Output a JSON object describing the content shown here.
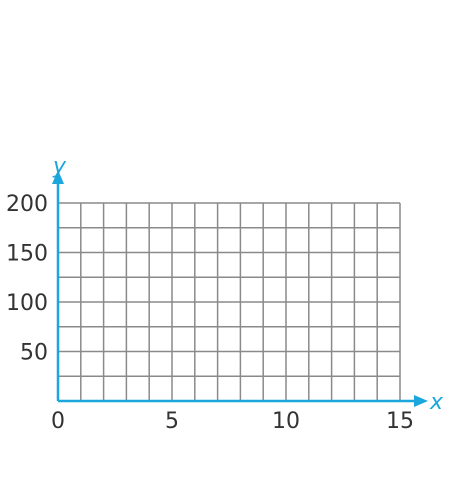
{
  "chart_data": {
    "type": "line",
    "series": [],
    "xlabel": "x",
    "ylabel": "y",
    "xlim": [
      0,
      15
    ],
    "ylim": [
      0,
      200
    ],
    "x_ticks": [
      "0",
      "5",
      "10",
      "15"
    ],
    "y_ticks": [
      "50",
      "100",
      "150",
      "200"
    ],
    "x_grid_step": 1,
    "y_grid_step": 25,
    "grid": true
  },
  "colors": {
    "axis": "#1ba6dc",
    "grid": "#8a8a8a",
    "text": "#333333"
  }
}
